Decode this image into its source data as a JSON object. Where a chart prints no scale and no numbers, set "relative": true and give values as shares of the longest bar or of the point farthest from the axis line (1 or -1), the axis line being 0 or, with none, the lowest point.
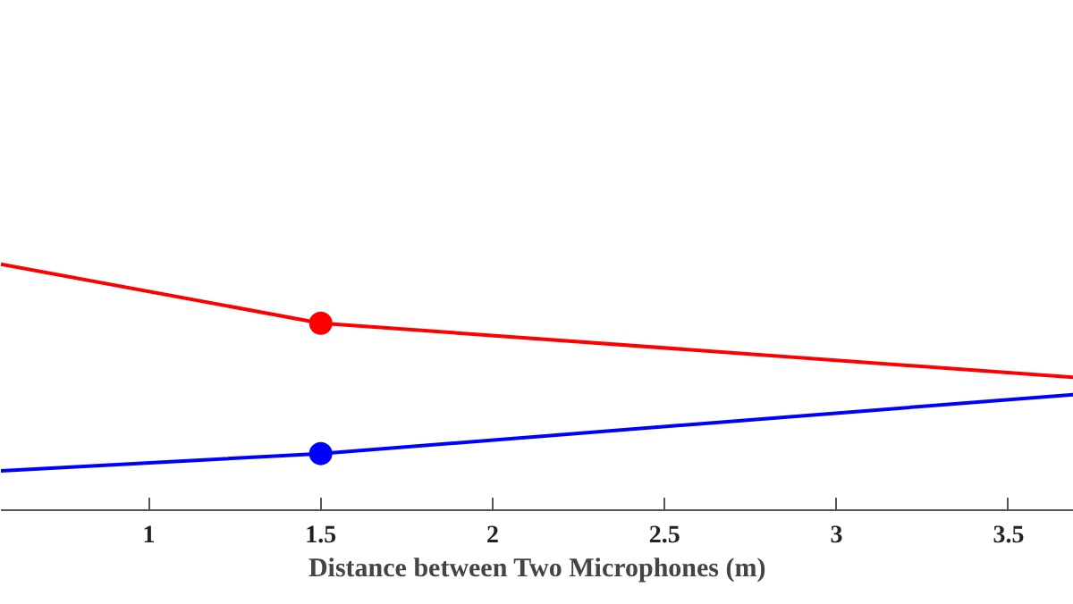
{
  "chart_data": {
    "type": "line",
    "xlabel": "Distance between Two Microphones (m)",
    "relative": true,
    "xlim": [
      0.57,
      3.69
    ],
    "xticks": [
      1,
      1.5,
      2,
      2.5,
      3,
      3.5
    ],
    "grid": false,
    "series": [
      {
        "color": "#ff0000",
        "x": [
          0.57,
          1.5,
          3.69
        ],
        "values": [
          1,
          0.76,
          0.54
        ],
        "marker": "none"
      },
      {
        "color": "#0000ff",
        "x": [
          0.57,
          1.5,
          3.69
        ],
        "values": [
          0.16,
          0.23,
          0.47
        ],
        "marker": "none"
      },
      {
        "type": "scatter",
        "color": "#ff0000",
        "x": [
          1.5
        ],
        "values": [
          0.76
        ],
        "marker": "circle"
      },
      {
        "type": "scatter",
        "color": "#0000ff",
        "x": [
          1.5
        ],
        "values": [
          0.23
        ],
        "marker": "circle"
      }
    ]
  }
}
